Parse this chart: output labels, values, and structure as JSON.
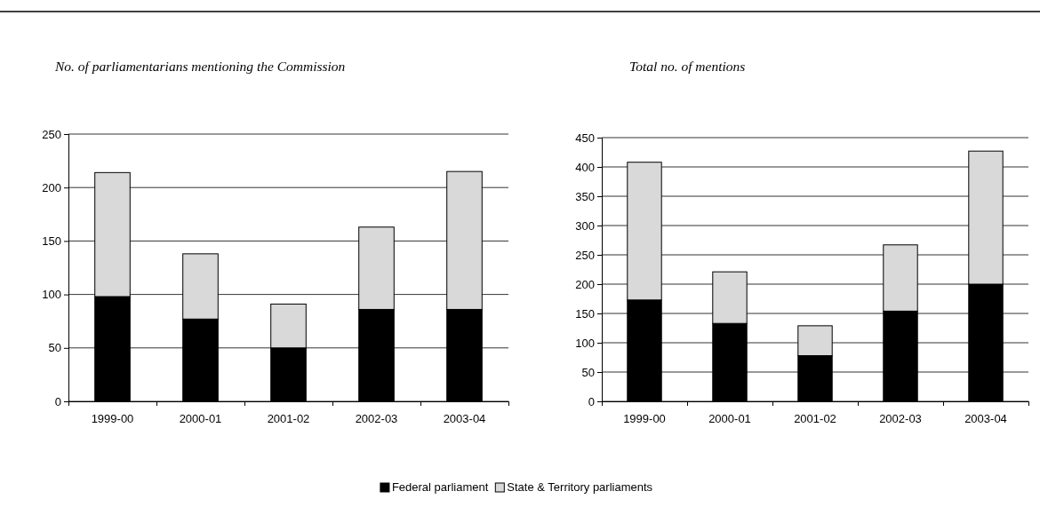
{
  "chart_data": [
    {
      "type": "bar",
      "title": "No. of parliamentarians mentioning the Commission",
      "categories": [
        "1999-00",
        "2000-01",
        "2001-02",
        "2002-03",
        "2003-04"
      ],
      "stacked": true,
      "legend": "bottom",
      "grid": "y",
      "ylim": [
        0,
        250
      ],
      "yticks": [
        0,
        50,
        100,
        150,
        200,
        250
      ],
      "series": [
        {
          "name": "Federal parliament",
          "color": "#000000",
          "values": [
            98,
            77,
            50,
            86,
            86
          ]
        },
        {
          "name": "State & Territory parliaments",
          "color": "#d9d9d9",
          "values": [
            116,
            61,
            41,
            77,
            129
          ]
        }
      ]
    },
    {
      "type": "bar",
      "title": "Total no. of mentions",
      "categories": [
        "1999-00",
        "2000-01",
        "2001-02",
        "2002-03",
        "2003-04"
      ],
      "stacked": true,
      "grid": "y",
      "ylim": [
        0,
        450
      ],
      "yticks": [
        0,
        50,
        100,
        150,
        200,
        250,
        300,
        350,
        400,
        450
      ],
      "series": [
        {
          "color": "#000000",
          "values": [
            173,
            133,
            78,
            154,
            200
          ]
        },
        {
          "color": "#d9d9d9",
          "values": [
            235,
            88,
            51,
            113,
            227
          ]
        }
      ]
    }
  ]
}
